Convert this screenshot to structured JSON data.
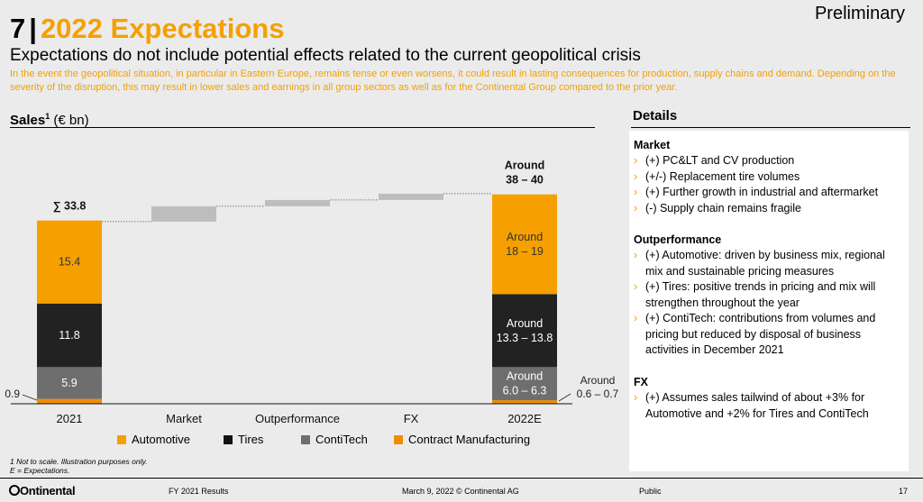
{
  "header": {
    "slide_number": "7",
    "separator": "|",
    "title": "2022 Expectations",
    "status_label": "Preliminary",
    "subtitle": "Expectations do not include potential effects related to the current geopolitical crisis",
    "disclaimer": "In the event the geopolitical situation, in particular in Eastern Europe, remains tense or even worsens, it could result in lasting consequences for production, supply chains and demand. Depending on the severity of the disruption, this may result in lower sales and earnings in all group sectors as well as for the Continental Group compared to the prior year."
  },
  "sales_section": {
    "heading": "Sales",
    "heading_sup": "1",
    "unit": "(€ bn)"
  },
  "chart_data": {
    "type": "bar",
    "subtype": "waterfall",
    "categories": [
      "2021",
      "Market",
      "Outperformance",
      "FX",
      "2022E"
    ],
    "series": [
      {
        "name": "Automotive",
        "values": [
          15.4,
          null,
          null,
          null,
          18.5
        ],
        "labels": [
          "15.4",
          "",
          "",
          "",
          "Around\n18 – 19"
        ]
      },
      {
        "name": "Tires",
        "values": [
          11.8,
          null,
          null,
          null,
          13.55
        ],
        "labels": [
          "11.8",
          "",
          "",
          "",
          "Around\n13.3 – 13.8"
        ]
      },
      {
        "name": "ContiTech",
        "values": [
          5.9,
          null,
          null,
          null,
          6.15
        ],
        "labels": [
          "5.9",
          "",
          "",
          "",
          "Around\n6.0 – 6.3"
        ]
      },
      {
        "name": "Contract Manufacturing",
        "values": [
          0.9,
          null,
          null,
          null,
          0.65
        ],
        "labels": [
          "0.9",
          "",
          "",
          "",
          "Around\n0.6 – 0.7"
        ]
      }
    ],
    "totals": {
      "2021": "∑ 33.8",
      "2022E": "Around\n38 – 40"
    },
    "totals_values": [
      33.8,
      null,
      null,
      null,
      39
    ],
    "bridge_steps_not_to_scale": true,
    "colors": {
      "Automotive": "#f5a000",
      "Tires": "#222222",
      "ContiTech": "#6e6e6e",
      "Contract Manufacturing": "#f08c00",
      "bridge": "#bdbdbd"
    },
    "legend_position": "bottom",
    "grid": false
  },
  "legend": {
    "items": [
      {
        "label": "Automotive",
        "color": "#f5a000"
      },
      {
        "label": "Tires",
        "color": "#222222"
      },
      {
        "label": "ContiTech",
        "color": "#6e6e6e"
      },
      {
        "label": "Contract Manufacturing",
        "color": "#f08c00"
      }
    ]
  },
  "details": {
    "heading": "Details",
    "sections": [
      {
        "title": "Market",
        "items": [
          "(+) PC&LT and CV production",
          "(+/-) Replacement tire volumes",
          "(+) Further growth in industrial and aftermarket",
          "(-) Supply chain remains fragile"
        ]
      },
      {
        "title": "Outperformance",
        "items": [
          "(+) Automotive: driven by business mix, regional mix and sustainable pricing measures",
          "(+) Tires: positive trends in pricing and mix will strengthen throughout the year",
          "(+) ContiTech: contributions from volumes and pricing but reduced by disposal of business activities in December 2021"
        ]
      },
      {
        "title": "FX",
        "items": [
          "(+) Assumes sales tailwind of about +3% for Automotive and +2% for Tires and ContiTech"
        ]
      }
    ],
    "bullet": "›"
  },
  "footnotes": {
    "note1": "1 Not to scale. Illustration purposes only.",
    "note2": "E = Expectations."
  },
  "footer": {
    "logo": "Ontinental",
    "report": "FY 2021 Results",
    "date_org": "March 9, 2022 © Continental AG",
    "classification": "Public",
    "page": "17"
  }
}
